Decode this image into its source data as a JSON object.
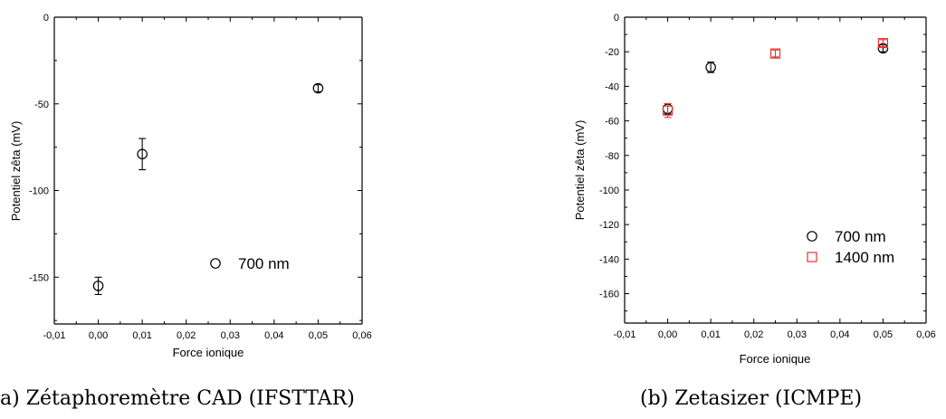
{
  "chart_data": [
    {
      "type": "scatter",
      "caption": "a) Zétaphoremètre CAD (IFSTTAR)",
      "xlabel": "Force ionique",
      "ylabel": "Potentiel zêta (mV)",
      "xlim": [
        -0.01,
        0.06
      ],
      "ylim": [
        -177,
        0
      ],
      "x_ticks": [
        -0.01,
        0.0,
        0.01,
        0.02,
        0.03,
        0.04,
        0.05,
        0.06
      ],
      "x_tick_labels": [
        "-0,01",
        "0,00",
        "0,01",
        "0,02",
        "0,03",
        "0,04",
        "0,05",
        "0,06"
      ],
      "y_ticks": [
        0,
        -50,
        -100,
        -150
      ],
      "y_tick_labels": [
        "0",
        "-50",
        "-100",
        "-150"
      ],
      "legend_position": "bottom-center",
      "series": [
        {
          "name": "700 nm",
          "marker": "circle",
          "color": "#000000",
          "points": [
            {
              "x": 0.0,
              "y": -155,
              "err": 5
            },
            {
              "x": 0.01,
              "y": -79,
              "err": 9
            },
            {
              "x": 0.05,
              "y": -41,
              "err": 2
            }
          ]
        }
      ]
    },
    {
      "type": "scatter",
      "caption": "(b) Zetasizer (ICMPE)",
      "xlabel": "Force ionique",
      "ylabel": "Potentiel zêta (mV)",
      "xlim": [
        -0.01,
        0.06
      ],
      "ylim": [
        -177,
        0
      ],
      "x_ticks": [
        -0.01,
        0.0,
        0.01,
        0.02,
        0.03,
        0.04,
        0.05,
        0.06
      ],
      "x_tick_labels": [
        "-0,01",
        "0,00",
        "0,01",
        "0,02",
        "0,03",
        "0,04",
        "0,05",
        "0,06"
      ],
      "y_ticks": [
        0,
        -20,
        -40,
        -60,
        -80,
        -100,
        -120,
        -140,
        -160
      ],
      "y_tick_labels": [
        "0",
        "-20",
        "-40",
        "-60",
        "-80",
        "-100",
        "-120",
        "-140",
        "-160"
      ],
      "legend_position": "bottom-right",
      "series": [
        {
          "name": "700 nm",
          "marker": "circle",
          "color": "#000000",
          "points": [
            {
              "x": 0.0,
              "y": -53,
              "err": 3
            },
            {
              "x": 0.01,
              "y": -29,
              "err": 3
            },
            {
              "x": 0.05,
              "y": -18,
              "err": 2
            }
          ]
        },
        {
          "name": "1400 nm",
          "marker": "square",
          "color": "#e8322f",
          "points": [
            {
              "x": 0.0,
              "y": -54,
              "err": 4
            },
            {
              "x": 0.025,
              "y": -21,
              "err": 2
            },
            {
              "x": 0.05,
              "y": -15,
              "err": 2
            }
          ]
        }
      ]
    }
  ]
}
